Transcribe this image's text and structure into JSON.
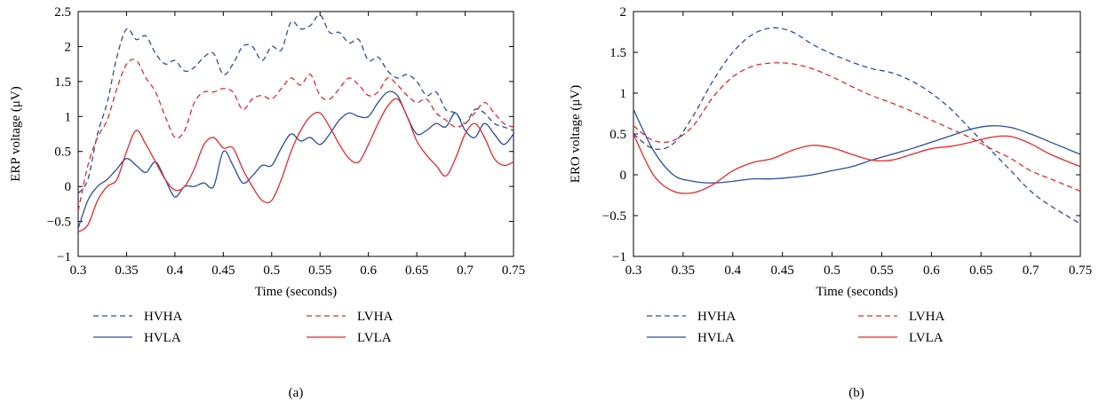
{
  "chart_data": [
    {
      "type": "line",
      "caption": "(a)",
      "xlabel": "Time (seconds)",
      "ylabel": "ERP voltage (μV)",
      "xlim": [
        0.3,
        0.75
      ],
      "ylim": [
        -1,
        2.5
      ],
      "xticks": [
        0.3,
        0.35,
        0.4,
        0.45,
        0.5,
        0.55,
        0.6,
        0.65,
        0.7,
        0.75
      ],
      "xtick_labels": [
        "0.3",
        "0.35",
        "0.4",
        "0.45",
        "0.5",
        "0.55",
        "0.6",
        "0.65",
        "0.7",
        "0.75"
      ],
      "yticks": [
        -1,
        -0.5,
        0,
        0.5,
        1,
        1.5,
        2,
        2.5
      ],
      "ytick_labels": [
        "−1",
        "−0.5",
        "0",
        "0.5",
        "1",
        "1.5",
        "2",
        "2.5"
      ],
      "grid": false,
      "legend_placement": "below",
      "series": [
        {
          "name": "HVHA",
          "color": "#2b4ea0",
          "dash": "dashed",
          "x": [
            0.3,
            0.31,
            0.32,
            0.33,
            0.34,
            0.35,
            0.36,
            0.37,
            0.38,
            0.39,
            0.4,
            0.41,
            0.42,
            0.43,
            0.44,
            0.45,
            0.46,
            0.47,
            0.48,
            0.49,
            0.5,
            0.51,
            0.52,
            0.53,
            0.54,
            0.55,
            0.56,
            0.57,
            0.58,
            0.59,
            0.6,
            0.61,
            0.62,
            0.63,
            0.64,
            0.65,
            0.66,
            0.67,
            0.68,
            0.69,
            0.7,
            0.71,
            0.72,
            0.73,
            0.74,
            0.75
          ],
          "y": [
            -0.1,
            0.1,
            0.75,
            1.2,
            1.85,
            2.25,
            2.1,
            2.15,
            1.9,
            1.75,
            1.8,
            1.65,
            1.7,
            1.85,
            1.9,
            1.6,
            1.75,
            2.0,
            2.0,
            1.8,
            2.0,
            1.95,
            2.35,
            2.25,
            2.3,
            2.45,
            2.2,
            2.2,
            2.05,
            2.1,
            1.8,
            1.85,
            1.65,
            1.55,
            1.6,
            1.5,
            1.3,
            1.35,
            1.1,
            1.05,
            0.9,
            1.1,
            1.05,
            0.9,
            0.85,
            0.8
          ]
        },
        {
          "name": "LVHA",
          "color": "#e8282b",
          "dash": "dashed",
          "x": [
            0.3,
            0.31,
            0.32,
            0.33,
            0.34,
            0.35,
            0.36,
            0.37,
            0.38,
            0.39,
            0.4,
            0.41,
            0.42,
            0.43,
            0.44,
            0.45,
            0.46,
            0.47,
            0.48,
            0.49,
            0.5,
            0.51,
            0.52,
            0.53,
            0.54,
            0.55,
            0.56,
            0.57,
            0.58,
            0.59,
            0.6,
            0.61,
            0.62,
            0.63,
            0.64,
            0.65,
            0.66,
            0.67,
            0.68,
            0.69,
            0.7,
            0.71,
            0.72,
            0.73,
            0.74,
            0.75
          ],
          "y": [
            -0.35,
            0.3,
            0.7,
            0.95,
            1.4,
            1.75,
            1.8,
            1.55,
            1.35,
            1.0,
            0.7,
            0.8,
            1.2,
            1.35,
            1.35,
            1.4,
            1.35,
            1.1,
            1.25,
            1.3,
            1.25,
            1.4,
            1.55,
            1.45,
            1.6,
            1.3,
            1.25,
            1.4,
            1.55,
            1.45,
            1.3,
            1.35,
            1.55,
            1.45,
            1.3,
            1.2,
            1.25,
            1.05,
            0.95,
            0.85,
            0.9,
            1.05,
            1.2,
            1.05,
            0.9,
            0.85
          ]
        },
        {
          "name": "HVLA",
          "color": "#2b4ea0",
          "dash": "solid",
          "x": [
            0.3,
            0.31,
            0.32,
            0.33,
            0.34,
            0.35,
            0.36,
            0.37,
            0.38,
            0.39,
            0.4,
            0.41,
            0.42,
            0.43,
            0.44,
            0.45,
            0.46,
            0.47,
            0.48,
            0.49,
            0.5,
            0.51,
            0.52,
            0.53,
            0.54,
            0.55,
            0.56,
            0.57,
            0.58,
            0.59,
            0.6,
            0.61,
            0.62,
            0.63,
            0.64,
            0.65,
            0.66,
            0.67,
            0.68,
            0.69,
            0.7,
            0.71,
            0.72,
            0.73,
            0.74,
            0.75
          ],
          "y": [
            -0.6,
            -0.2,
            0.0,
            0.1,
            0.25,
            0.4,
            0.3,
            0.2,
            0.35,
            0.1,
            -0.15,
            0.0,
            0.0,
            0.05,
            0.0,
            0.5,
            0.3,
            0.05,
            0.15,
            0.3,
            0.3,
            0.55,
            0.75,
            0.65,
            0.7,
            0.6,
            0.75,
            0.95,
            1.05,
            1.0,
            1.0,
            1.2,
            1.35,
            1.3,
            1.0,
            0.75,
            0.8,
            0.9,
            0.85,
            1.05,
            0.8,
            0.7,
            0.9,
            0.75,
            0.6,
            0.75
          ]
        },
        {
          "name": "LVLA",
          "color": "#e8282b",
          "dash": "solid",
          "x": [
            0.3,
            0.31,
            0.32,
            0.33,
            0.34,
            0.35,
            0.36,
            0.37,
            0.38,
            0.39,
            0.4,
            0.41,
            0.42,
            0.43,
            0.44,
            0.45,
            0.46,
            0.47,
            0.48,
            0.49,
            0.5,
            0.51,
            0.52,
            0.53,
            0.54,
            0.55,
            0.56,
            0.57,
            0.58,
            0.59,
            0.6,
            0.61,
            0.62,
            0.63,
            0.64,
            0.65,
            0.66,
            0.67,
            0.68,
            0.69,
            0.7,
            0.71,
            0.72,
            0.73,
            0.74,
            0.75
          ],
          "y": [
            -0.65,
            -0.55,
            -0.2,
            0.0,
            0.1,
            0.5,
            0.8,
            0.6,
            0.35,
            0.1,
            -0.05,
            0.0,
            0.25,
            0.6,
            0.7,
            0.55,
            0.55,
            0.25,
            0.0,
            -0.2,
            -0.2,
            0.1,
            0.5,
            0.8,
            1.0,
            1.05,
            0.85,
            0.6,
            0.4,
            0.35,
            0.6,
            0.9,
            1.15,
            1.25,
            1.0,
            0.65,
            0.45,
            0.3,
            0.15,
            0.4,
            0.75,
            0.9,
            0.7,
            0.4,
            0.3,
            0.35
          ]
        }
      ]
    },
    {
      "type": "line",
      "caption": "(b)",
      "xlabel": "Time (seconds)",
      "ylabel": "ERO voltage (μV)",
      "xlim": [
        0.3,
        0.75
      ],
      "ylim": [
        -1,
        2
      ],
      "xticks": [
        0.3,
        0.35,
        0.4,
        0.45,
        0.5,
        0.55,
        0.6,
        0.65,
        0.7,
        0.75
      ],
      "xtick_labels": [
        "0.3",
        "0.35",
        "0.4",
        "0.45",
        "0.5",
        "0.55",
        "0.6",
        "0.65",
        "0.7",
        "0.75"
      ],
      "yticks": [
        -1,
        -0.5,
        0,
        0.5,
        1,
        1.5,
        2
      ],
      "ytick_labels": [
        "−1",
        "−0.5",
        "0",
        "0.5",
        "1",
        "1.5",
        "2"
      ],
      "grid": false,
      "legend_placement": "below",
      "series": [
        {
          "name": "HVHA",
          "color": "#2b4ea0",
          "dash": "dashed",
          "x": [
            0.3,
            0.32,
            0.34,
            0.36,
            0.38,
            0.4,
            0.42,
            0.44,
            0.46,
            0.48,
            0.5,
            0.52,
            0.54,
            0.56,
            0.58,
            0.6,
            0.62,
            0.64,
            0.66,
            0.68,
            0.7,
            0.72,
            0.75
          ],
          "y": [
            0.5,
            0.32,
            0.38,
            0.72,
            1.15,
            1.5,
            1.72,
            1.8,
            1.75,
            1.6,
            1.48,
            1.38,
            1.3,
            1.25,
            1.15,
            1.0,
            0.8,
            0.55,
            0.3,
            0.05,
            -0.2,
            -0.38,
            -0.6
          ]
        },
        {
          "name": "LVHA",
          "color": "#e8282b",
          "dash": "dashed",
          "x": [
            0.3,
            0.32,
            0.34,
            0.36,
            0.38,
            0.4,
            0.42,
            0.44,
            0.46,
            0.48,
            0.5,
            0.52,
            0.54,
            0.56,
            0.58,
            0.6,
            0.62,
            0.64,
            0.66,
            0.68,
            0.7,
            0.72,
            0.75
          ],
          "y": [
            0.6,
            0.42,
            0.42,
            0.6,
            0.95,
            1.2,
            1.33,
            1.37,
            1.36,
            1.3,
            1.2,
            1.08,
            0.97,
            0.88,
            0.78,
            0.67,
            0.56,
            0.45,
            0.32,
            0.2,
            0.05,
            -0.05,
            -0.2
          ]
        },
        {
          "name": "HVLA",
          "color": "#2b4ea0",
          "dash": "solid",
          "x": [
            0.3,
            0.32,
            0.34,
            0.36,
            0.38,
            0.4,
            0.42,
            0.44,
            0.46,
            0.48,
            0.5,
            0.52,
            0.54,
            0.56,
            0.58,
            0.6,
            0.62,
            0.64,
            0.66,
            0.68,
            0.7,
            0.72,
            0.75
          ],
          "y": [
            0.8,
            0.3,
            0.0,
            -0.08,
            -0.1,
            -0.08,
            -0.05,
            -0.05,
            -0.03,
            0.0,
            0.05,
            0.1,
            0.18,
            0.25,
            0.32,
            0.4,
            0.48,
            0.56,
            0.6,
            0.58,
            0.5,
            0.4,
            0.25
          ]
        },
        {
          "name": "LVLA",
          "color": "#e8282b",
          "dash": "solid",
          "x": [
            0.3,
            0.32,
            0.34,
            0.36,
            0.38,
            0.4,
            0.42,
            0.44,
            0.46,
            0.48,
            0.5,
            0.52,
            0.54,
            0.56,
            0.58,
            0.6,
            0.62,
            0.64,
            0.66,
            0.68,
            0.7,
            0.72,
            0.75
          ],
          "y": [
            0.5,
            0.0,
            -0.2,
            -0.22,
            -0.12,
            0.05,
            0.15,
            0.2,
            0.3,
            0.36,
            0.33,
            0.25,
            0.18,
            0.18,
            0.25,
            0.32,
            0.35,
            0.4,
            0.46,
            0.47,
            0.38,
            0.25,
            0.1
          ]
        }
      ]
    }
  ]
}
